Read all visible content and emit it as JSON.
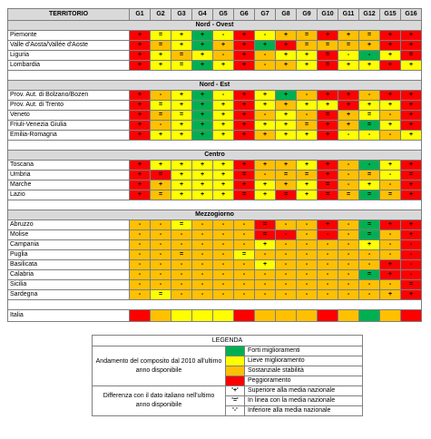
{
  "header": {
    "territorio": "TERRITORIO",
    "goals": [
      "G1",
      "G2",
      "G3",
      "G4",
      "G5",
      "G6",
      "G7",
      "G8",
      "G9",
      "G10",
      "G11",
      "G12",
      "G15",
      "G16"
    ]
  },
  "color_map": {
    "r": "#ff0000",
    "o": "#ffc000",
    "y": "#ffff00",
    "g": "#00b050"
  },
  "sections": [
    {
      "title": "Nord - Ovest",
      "rows": [
        {
          "name": "Piemonte",
          "colors": [
            "r",
            "y",
            "y",
            "g",
            "y",
            "r",
            "y",
            "o",
            "o",
            "r",
            "o",
            "o",
            "r",
            "r"
          ],
          "symbols": [
            "+",
            "=",
            "+",
            "+",
            "-",
            "+",
            "-",
            "+",
            "=",
            "+",
            "+",
            "=",
            "+",
            "+"
          ]
        },
        {
          "name": "Valle d'Aosta/Vallée d'Aoste",
          "colors": [
            "r",
            "o",
            "y",
            "g",
            "o",
            "r",
            "g",
            "r",
            "o",
            "o",
            "o",
            "o",
            "r",
            "r"
          ],
          "symbols": [
            "+",
            "=",
            "+",
            "+",
            "+",
            "+",
            "+",
            "+",
            "=",
            "=",
            "=",
            "+",
            "+",
            "+"
          ]
        },
        {
          "name": "Liguria",
          "colors": [
            "r",
            "y",
            "o",
            "y",
            "o",
            "r",
            "o",
            "y",
            "y",
            "r",
            "y",
            "g",
            "y",
            "r"
          ],
          "symbols": [
            "+",
            "+",
            "=",
            "+",
            "-",
            "+",
            "-",
            "+",
            "+",
            "=",
            "-",
            "-",
            "+",
            "="
          ]
        },
        {
          "name": "Lombardia",
          "colors": [
            "r",
            "y",
            "y",
            "g",
            "y",
            "r",
            "o",
            "o",
            "y",
            "r",
            "y",
            "y",
            "r",
            "y"
          ],
          "symbols": [
            "+",
            "+",
            "=",
            "+",
            "+",
            "+",
            "-",
            "+",
            "+",
            "=",
            "+",
            "+",
            "+",
            "+"
          ]
        }
      ]
    },
    {
      "title": "Nord - Est",
      "rows": [
        {
          "name": "Prov. Aut. di Bolzano/Bozen",
          "colors": [
            "r",
            "o",
            "y",
            "g",
            "y",
            "r",
            "y",
            "g",
            "o",
            "r",
            "r",
            "o",
            "r",
            "r"
          ],
          "symbols": [
            "+",
            "-",
            "+",
            "+",
            "-",
            "+",
            "+",
            "+",
            "-",
            "+",
            "+",
            "-",
            "+",
            "+"
          ]
        },
        {
          "name": "Prov. Aut. di Trento",
          "colors": [
            "r",
            "y",
            "y",
            "g",
            "y",
            "r",
            "y",
            "o",
            "y",
            "y",
            "r",
            "y",
            "y",
            "r"
          ],
          "symbols": [
            "+",
            "=",
            "+",
            "+",
            "+",
            "+",
            "+",
            "+",
            "+",
            "+",
            "+",
            "+",
            "+",
            "+"
          ]
        },
        {
          "name": "Veneto",
          "colors": [
            "r",
            "o",
            "y",
            "g",
            "y",
            "r",
            "o",
            "y",
            "o",
            "r",
            "o",
            "y",
            "o",
            "r"
          ],
          "symbols": [
            "+",
            "=",
            "=",
            "+",
            "+",
            "+",
            "-",
            "+",
            "-",
            "=",
            "+",
            "=",
            "-",
            "+"
          ]
        },
        {
          "name": "Friuli-Venezia Giulia",
          "colors": [
            "r",
            "o",
            "y",
            "g",
            "y",
            "r",
            "y",
            "y",
            "o",
            "r",
            "o",
            "g",
            "y",
            "r"
          ],
          "symbols": [
            "+",
            "-",
            "+",
            "+",
            "+",
            "+",
            "+",
            "+",
            "=",
            "+",
            "+",
            "=",
            "+",
            "+"
          ]
        },
        {
          "name": "Emilia-Romagna",
          "colors": [
            "r",
            "y",
            "y",
            "g",
            "y",
            "r",
            "o",
            "y",
            "y",
            "r",
            "y",
            "y",
            "o",
            "y"
          ],
          "symbols": [
            "+",
            "+",
            "+",
            "+",
            "+",
            "+",
            "+",
            "+",
            "+",
            "+",
            "-",
            "-",
            "-",
            "+"
          ]
        }
      ]
    },
    {
      "title": "Centro",
      "rows": [
        {
          "name": "Toscana",
          "colors": [
            "r",
            "y",
            "y",
            "y",
            "y",
            "r",
            "o",
            "o",
            "y",
            "r",
            "o",
            "g",
            "y",
            "r"
          ],
          "symbols": [
            "+",
            "+",
            "+",
            "+",
            "+",
            "+",
            "+",
            "+",
            "+",
            "+",
            "-",
            "-",
            "+",
            "+"
          ]
        },
        {
          "name": "Umbria",
          "colors": [
            "r",
            "r",
            "y",
            "y",
            "y",
            "r",
            "o",
            "o",
            "o",
            "r",
            "o",
            "o",
            "y",
            "r"
          ],
          "symbols": [
            "+",
            "=",
            "+",
            "+",
            "+",
            "=",
            "-",
            "=",
            "=",
            "+",
            "-",
            "=",
            "-",
            "="
          ]
        },
        {
          "name": "Marche",
          "colors": [
            "r",
            "o",
            "y",
            "y",
            "y",
            "r",
            "y",
            "o",
            "y",
            "r",
            "o",
            "y",
            "o",
            "r"
          ],
          "symbols": [
            "+",
            "+",
            "+",
            "+",
            "+",
            "+",
            "+",
            "+",
            "+",
            "=",
            "-",
            "+",
            "-",
            "+"
          ]
        },
        {
          "name": "Lazio",
          "colors": [
            "r",
            "o",
            "y",
            "y",
            "y",
            "r",
            "y",
            "r",
            "y",
            "r",
            "o",
            "g",
            "o",
            "r"
          ],
          "symbols": [
            "+",
            "=",
            "+",
            "+",
            "+",
            "=",
            "+",
            "=",
            "+",
            "=",
            "=",
            "=",
            "=",
            "+"
          ]
        }
      ]
    },
    {
      "title": "Mezzogiorno",
      "rows": [
        {
          "name": "Abruzzo",
          "colors": [
            "o",
            "o",
            "y",
            "o",
            "o",
            "o",
            "r",
            "o",
            "o",
            "r",
            "o",
            "g",
            "r",
            "r"
          ],
          "symbols": [
            "-",
            "-",
            "=",
            "-",
            "-",
            "-",
            "=",
            "-",
            "-",
            "+",
            "-",
            "=",
            "+",
            "+"
          ]
        },
        {
          "name": "Molise",
          "colors": [
            "o",
            "o",
            "o",
            "o",
            "o",
            "o",
            "r",
            "r",
            "o",
            "r",
            "o",
            "g",
            "o",
            "r"
          ],
          "symbols": [
            "-",
            "-",
            "-",
            "-",
            "-",
            "-",
            "=",
            "-",
            "-",
            "-",
            "-",
            "=",
            "-",
            "+"
          ]
        },
        {
          "name": "Campania",
          "colors": [
            "o",
            "o",
            "o",
            "o",
            "o",
            "o",
            "y",
            "o",
            "o",
            "o",
            "o",
            "y",
            "o",
            "r"
          ],
          "symbols": [
            "-",
            "-",
            "-",
            "-",
            "-",
            "-",
            "+",
            "-",
            "-",
            "-",
            "-",
            "+",
            "-",
            "-"
          ]
        },
        {
          "name": "Puglia",
          "colors": [
            "o",
            "o",
            "o",
            "o",
            "o",
            "y",
            "o",
            "o",
            "o",
            "o",
            "o",
            "o",
            "o",
            "r"
          ],
          "symbols": [
            "-",
            "-",
            "=",
            "-",
            "-",
            "=",
            "-",
            "-",
            "-",
            "-",
            "-",
            "-",
            "-",
            "-"
          ]
        },
        {
          "name": "Basilicata",
          "colors": [
            "o",
            "o",
            "o",
            "o",
            "o",
            "o",
            "y",
            "o",
            "o",
            "o",
            "o",
            "o",
            "r",
            "r"
          ],
          "symbols": [
            "-",
            "-",
            "-",
            "-",
            "-",
            "-",
            "+",
            "-",
            "-",
            "-",
            "-",
            "-",
            "+",
            "-"
          ]
        },
        {
          "name": "Calabria",
          "colors": [
            "o",
            "o",
            "o",
            "o",
            "o",
            "o",
            "o",
            "o",
            "o",
            "o",
            "o",
            "g",
            "r",
            "r"
          ],
          "symbols": [
            "-",
            "-",
            "-",
            "-",
            "-",
            "-",
            "-",
            "-",
            "-",
            "-",
            "-",
            "=",
            "+",
            "-"
          ]
        },
        {
          "name": "Sicilia",
          "colors": [
            "o",
            "o",
            "o",
            "o",
            "o",
            "o",
            "o",
            "o",
            "o",
            "o",
            "o",
            "o",
            "o",
            "r"
          ],
          "symbols": [
            "-",
            "-",
            "-",
            "-",
            "-",
            "-",
            "-",
            "-",
            "-",
            "-",
            "-",
            "-",
            "-",
            "="
          ]
        },
        {
          "name": "Sardegna",
          "colors": [
            "o",
            "y",
            "o",
            "o",
            "o",
            "o",
            "o",
            "o",
            "o",
            "o",
            "o",
            "o",
            "o",
            "r"
          ],
          "symbols": [
            "-",
            "=",
            "-",
            "-",
            "-",
            "-",
            "-",
            "-",
            "-",
            "-",
            "-",
            "-",
            "+",
            "+"
          ]
        }
      ]
    }
  ],
  "italia": {
    "name": "Italia",
    "colors": [
      "r",
      "o",
      "y",
      "y",
      "y",
      "r",
      "o",
      "o",
      "o",
      "r",
      "o",
      "g",
      "o",
      "r"
    ]
  },
  "legend": {
    "title": "LEGENDA",
    "trend_label": "Andamento del composito dal 2010 all'ultimo anno disponibile",
    "trend_items": [
      {
        "color": "#00b050",
        "text": "Forti miglioramenti"
      },
      {
        "color": "#ffff00",
        "text": "Lieve miglioramento"
      },
      {
        "color": "#ffc000",
        "text": "Sostanziale stabilità"
      },
      {
        "color": "#ff0000",
        "text": "Peggioramento"
      }
    ],
    "diff_label": "Differenza con il dato italiano nell'ultimo anno disponibile",
    "diff_items": [
      {
        "symbol": "'+'",
        "text": "Superiore alla media nazionale"
      },
      {
        "symbol": "'='",
        "text": "In linea con la media nazionale"
      },
      {
        "symbol": "'-'",
        "text": "Inferiore alla media nazionale"
      }
    ]
  }
}
